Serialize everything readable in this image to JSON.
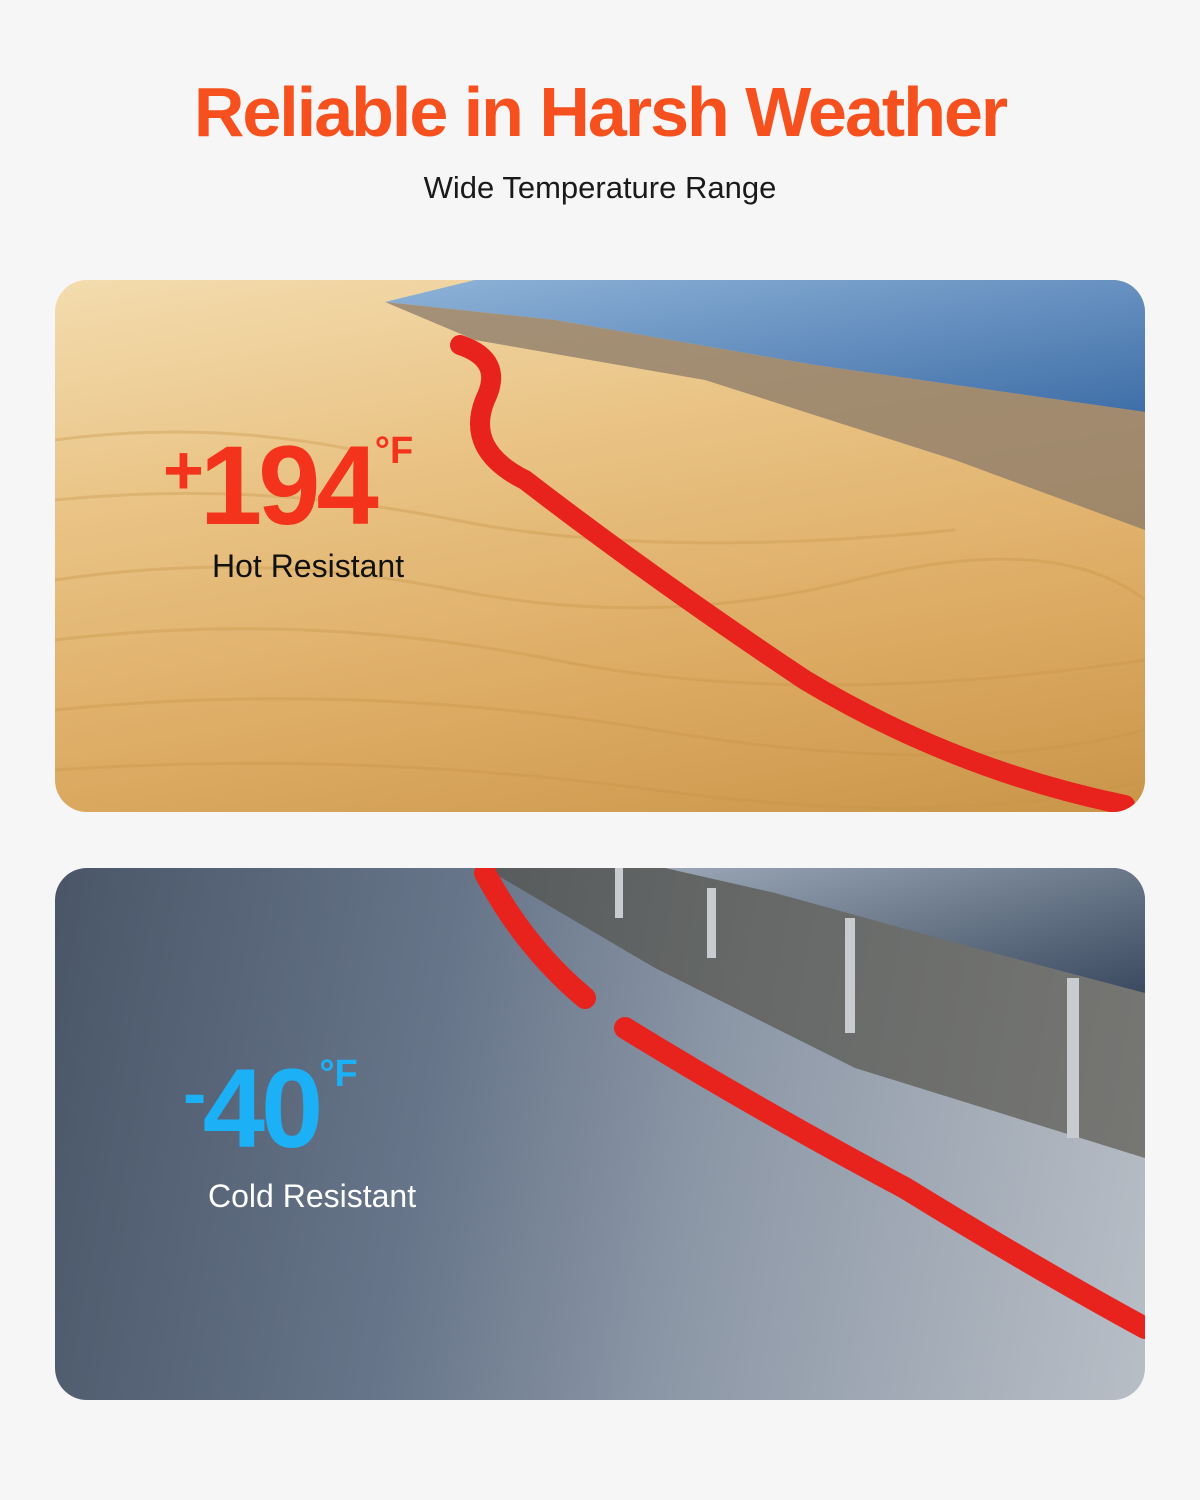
{
  "header": {
    "title": "Reliable in Harsh Weather",
    "subtitle": "Wide Temperature Range"
  },
  "hot_panel": {
    "sign": "+",
    "value": "194",
    "unit": "°F",
    "label": "Hot Resistant",
    "accent": "#f4331c"
  },
  "cold_panel": {
    "sign": "-",
    "value": "40",
    "unit": "°F",
    "label": "Cold Resistant",
    "accent": "#1cb0f6"
  },
  "colors": {
    "title": "#f5501e",
    "cable": "#e8231e",
    "background": "#f6f6f6"
  }
}
